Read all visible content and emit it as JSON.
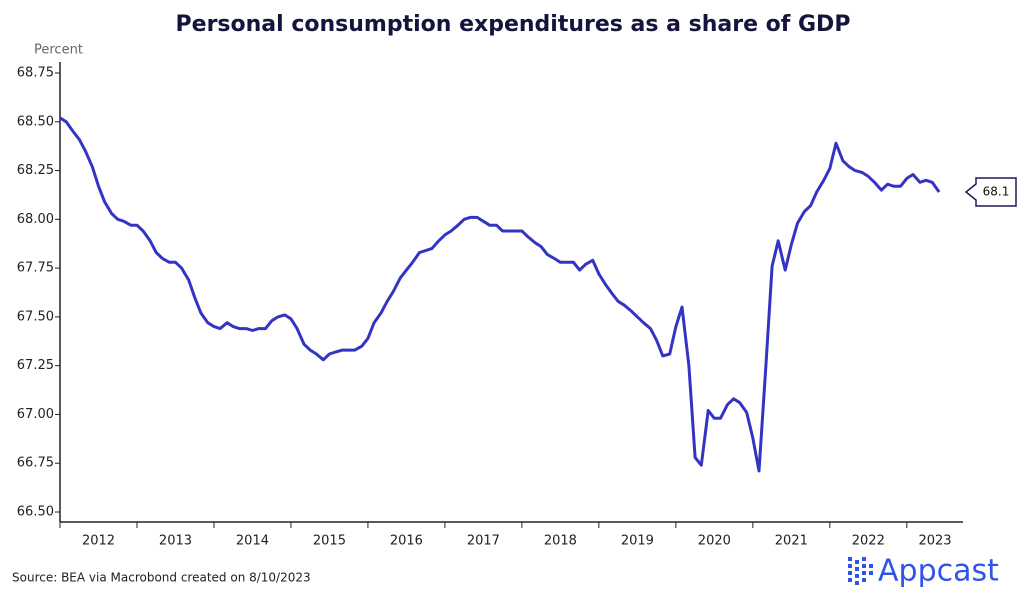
{
  "chart_data": {
    "type": "line",
    "title": "Personal consumption expenditures as a share of GDP",
    "y_label": "Percent",
    "source": "Source: BEA via Macrobond created on 8/10/2023",
    "logo": "Appcast",
    "end_label": "68.1",
    "xlim": [
      2012,
      2023.73
    ],
    "xticks": [
      2012,
      2013,
      2014,
      2015,
      2016,
      2017,
      2018,
      2019,
      2020,
      2021,
      2022,
      2023
    ],
    "ylim": [
      66.5,
      68.75
    ],
    "yticks": [
      {
        "value": 66.5,
        "label": "66.50"
      },
      66.75,
      {
        "value": 67,
        "label": "67.00"
      },
      67.25,
      {
        "value": 67.5,
        "label": "67.50"
      },
      67.75,
      {
        "value": 68,
        "label": "68.00"
      },
      68.25,
      {
        "value": 68.5,
        "label": "68.50"
      },
      68.75
    ],
    "series": [
      {
        "name": "Personal consumption expenditures as a share of GDP",
        "color": "#3434c4",
        "x": [
          2012.0,
          2012.08,
          2012.17,
          2012.25,
          2012.33,
          2012.42,
          2012.5,
          2012.58,
          2012.67,
          2012.75,
          2012.83,
          2012.92,
          2013.0,
          2013.08,
          2013.17,
          2013.25,
          2013.33,
          2013.42,
          2013.5,
          2013.58,
          2013.67,
          2013.75,
          2013.83,
          2013.92,
          2014.0,
          2014.08,
          2014.17,
          2014.25,
          2014.33,
          2014.42,
          2014.5,
          2014.58,
          2014.67,
          2014.75,
          2014.83,
          2014.92,
          2015.0,
          2015.08,
          2015.17,
          2015.25,
          2015.33,
          2015.42,
          2015.5,
          2015.58,
          2015.67,
          2015.75,
          2015.83,
          2015.92,
          2016.0,
          2016.08,
          2016.17,
          2016.25,
          2016.33,
          2016.42,
          2016.5,
          2016.58,
          2016.67,
          2016.75,
          2016.83,
          2016.92,
          2017.0,
          2017.08,
          2017.17,
          2017.25,
          2017.33,
          2017.42,
          2017.5,
          2017.58,
          2017.67,
          2017.75,
          2017.83,
          2017.92,
          2018.0,
          2018.08,
          2018.17,
          2018.25,
          2018.33,
          2018.42,
          2018.5,
          2018.58,
          2018.67,
          2018.75,
          2018.83,
          2018.92,
          2019.0,
          2019.08,
          2019.17,
          2019.25,
          2019.33,
          2019.42,
          2019.5,
          2019.58,
          2019.67,
          2019.75,
          2019.83,
          2019.92,
          2020.0,
          2020.08,
          2020.17,
          2020.25,
          2020.33,
          2020.42,
          2020.5,
          2020.58,
          2020.67,
          2020.75,
          2020.83,
          2020.92,
          2021.0,
          2021.08,
          2021.17,
          2021.25,
          2021.33,
          2021.42,
          2021.5,
          2021.58,
          2021.67,
          2021.75,
          2021.83,
          2021.92,
          2022.0,
          2022.08,
          2022.17,
          2022.25,
          2022.33,
          2022.42,
          2022.5,
          2022.58,
          2022.67,
          2022.75,
          2022.83,
          2022.92,
          2023.0,
          2023.08,
          2023.17,
          2023.25,
          2023.33,
          2023.42
        ],
        "values": [
          68.52,
          68.5,
          68.45,
          68.41,
          68.35,
          68.27,
          68.17,
          68.09,
          68.03,
          68.0,
          67.99,
          67.97,
          67.97,
          67.94,
          67.89,
          67.83,
          67.8,
          67.78,
          67.78,
          67.75,
          67.69,
          67.6,
          67.52,
          67.47,
          67.45,
          67.44,
          67.47,
          67.45,
          67.44,
          67.44,
          67.43,
          67.44,
          67.44,
          67.48,
          67.5,
          67.51,
          67.49,
          67.44,
          67.36,
          67.33,
          67.31,
          67.28,
          67.31,
          67.32,
          67.33,
          67.33,
          67.33,
          67.35,
          67.39,
          67.47,
          67.52,
          67.58,
          67.63,
          67.7,
          67.74,
          67.78,
          67.83,
          67.84,
          67.85,
          67.89,
          67.92,
          67.94,
          67.97,
          68.0,
          68.01,
          68.01,
          67.99,
          67.97,
          67.97,
          67.94,
          67.94,
          67.94,
          67.94,
          67.91,
          67.88,
          67.86,
          67.82,
          67.8,
          67.78,
          67.78,
          67.78,
          67.74,
          67.77,
          67.79,
          67.72,
          67.67,
          67.62,
          67.58,
          67.56,
          67.53,
          67.5,
          67.47,
          67.44,
          67.38,
          67.3,
          67.31,
          67.45,
          67.55,
          67.25,
          66.78,
          66.74,
          67.02,
          66.98,
          66.98,
          67.05,
          67.08,
          67.06,
          67.01,
          66.88,
          66.71,
          67.25,
          67.76,
          67.89,
          67.74,
          67.87,
          67.98,
          68.04,
          68.07,
          68.14,
          68.2,
          68.26,
          68.39,
          68.3,
          68.27,
          68.25,
          68.24,
          68.22,
          68.19,
          68.15,
          68.18,
          68.17,
          68.17,
          68.21,
          68.23,
          68.19,
          68.2,
          68.19,
          68.14
        ]
      }
    ]
  }
}
